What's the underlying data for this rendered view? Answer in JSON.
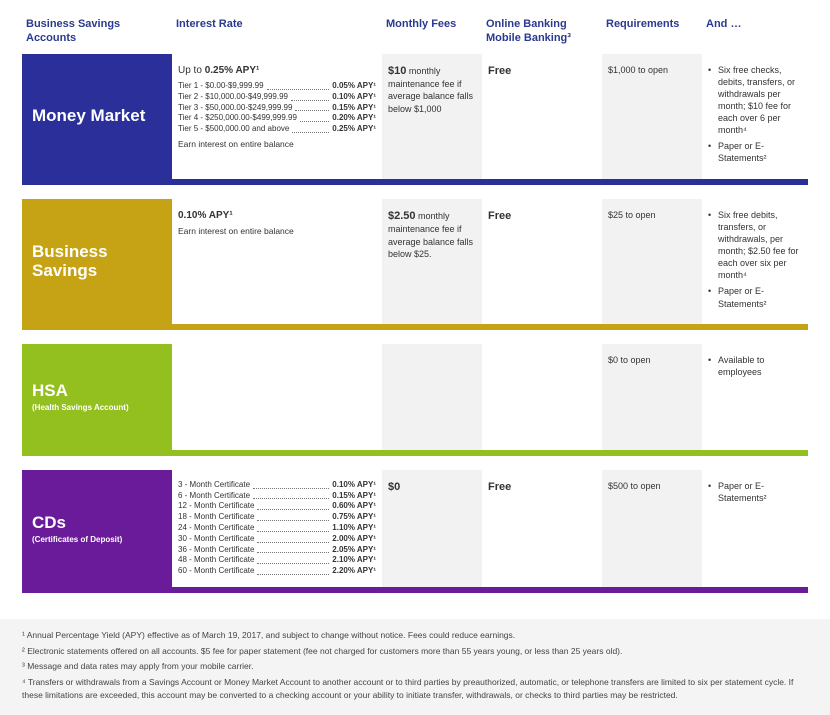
{
  "headers": {
    "c0": "Business Savings Accounts",
    "c1": "Interest Rate",
    "c2": "Monthly Fees",
    "c3": "Online Banking Mobile Banking³",
    "c4": "Requirements",
    "c5": "And …"
  },
  "sections": [
    {
      "title": "Money Market",
      "sub": "",
      "color": "#2a2f9a",
      "rate_head": "Up to 0.25% APY¹",
      "tiers": [
        {
          "name": "Tier 1 - $0.00-$9,999.99",
          "val": "0.05% APY¹"
        },
        {
          "name": "Tier 2 - $10,000.00-$49,999.99",
          "val": "0.10% APY¹"
        },
        {
          "name": "Tier 3 - $50,000.00-$249,999.99",
          "val": "0.15% APY¹"
        },
        {
          "name": "Tier 4 - $250,000.00-$499,999.99",
          "val": "0.20% APY¹"
        },
        {
          "name": "Tier 5 - $500,000.00 and above",
          "val": "0.25% APY¹"
        }
      ],
      "earn": "Earn interest on entire balance",
      "fee_strong": "$10",
      "fee_rest": " monthly maintenance fee if average balance falls below $1,000",
      "online": "Free",
      "req": "$1,000 to open",
      "bullets": [
        "Six free checks, debits, transfers, or withdrawals per month; $10 fee for each over 6 per month⁴",
        "Paper or E-Statements²"
      ]
    },
    {
      "title": "Business Savings",
      "sub": "",
      "color": "#c6a315",
      "rate_head": "0.10% APY¹",
      "tiers": [],
      "earn": "Earn interest on entire balance",
      "fee_strong": "$2.50",
      "fee_rest": " monthly maintenance fee if average balance falls below $25.",
      "online": "Free",
      "req": "$25 to open",
      "bullets": [
        "Six free debits, transfers, or withdrawals, per month; $2.50 fee for each over six per month⁴",
        "Paper or E-Statements²"
      ]
    },
    {
      "title": "HSA",
      "sub": "(Health Savings Account)",
      "color": "#93c01f",
      "rate_head": "",
      "tiers": [],
      "earn": "",
      "fee_strong": "",
      "fee_rest": "",
      "online": "",
      "req": "$0 to open",
      "bullets": [
        "Available to employees"
      ]
    },
    {
      "title": "CDs",
      "sub": "(Certificates of Deposit)",
      "color": "#6a1b9a",
      "rate_head": "",
      "tiers": [
        {
          "name": "3 - Month Certificate",
          "val": "0.10% APY¹"
        },
        {
          "name": "6 - Month Certificate",
          "val": "0.15% APY¹"
        },
        {
          "name": "12 - Month Certificate",
          "val": "0.60% APY¹"
        },
        {
          "name": "18 - Month Certificate",
          "val": "0.75% APY¹"
        },
        {
          "name": "24 - Month Certificate",
          "val": "1.10% APY¹"
        },
        {
          "name": "30 - Month Certificate",
          "val": "2.00% APY¹"
        },
        {
          "name": "36 - Month Certificate",
          "val": "2.05% APY¹"
        },
        {
          "name": "48 - Month Certificate",
          "val": "2.10% APY¹"
        },
        {
          "name": "60 - Month Certificate",
          "val": "2.20% APY¹"
        }
      ],
      "earn": "",
      "fee_strong": "$0",
      "fee_rest": "",
      "online": "Free",
      "req": "$500 to open",
      "bullets": [
        "Paper or E-Statements²"
      ]
    }
  ],
  "footnotes": [
    "¹ Annual Percentage Yield (APY) effective as of March 19, 2017, and subject to change without notice. Fees could reduce earnings.",
    "² Electronic statements offered on all accounts. $5 fee for paper statement (fee not charged for customers more than 55 years young, or less than 25 years old).",
    "³ Message and data rates may apply from your mobile carrier.",
    "⁴ Transfers or withdrawals from a Savings Account or Money Market Account to another account or to third parties by preauthorized, automatic, or telephone transfers are limited to six per statement cycle. If these limitations are exceeded, this account may be converted to a checking account or your ability to initiate transfer, withdrawals, or checks to third parties may be restricted."
  ]
}
